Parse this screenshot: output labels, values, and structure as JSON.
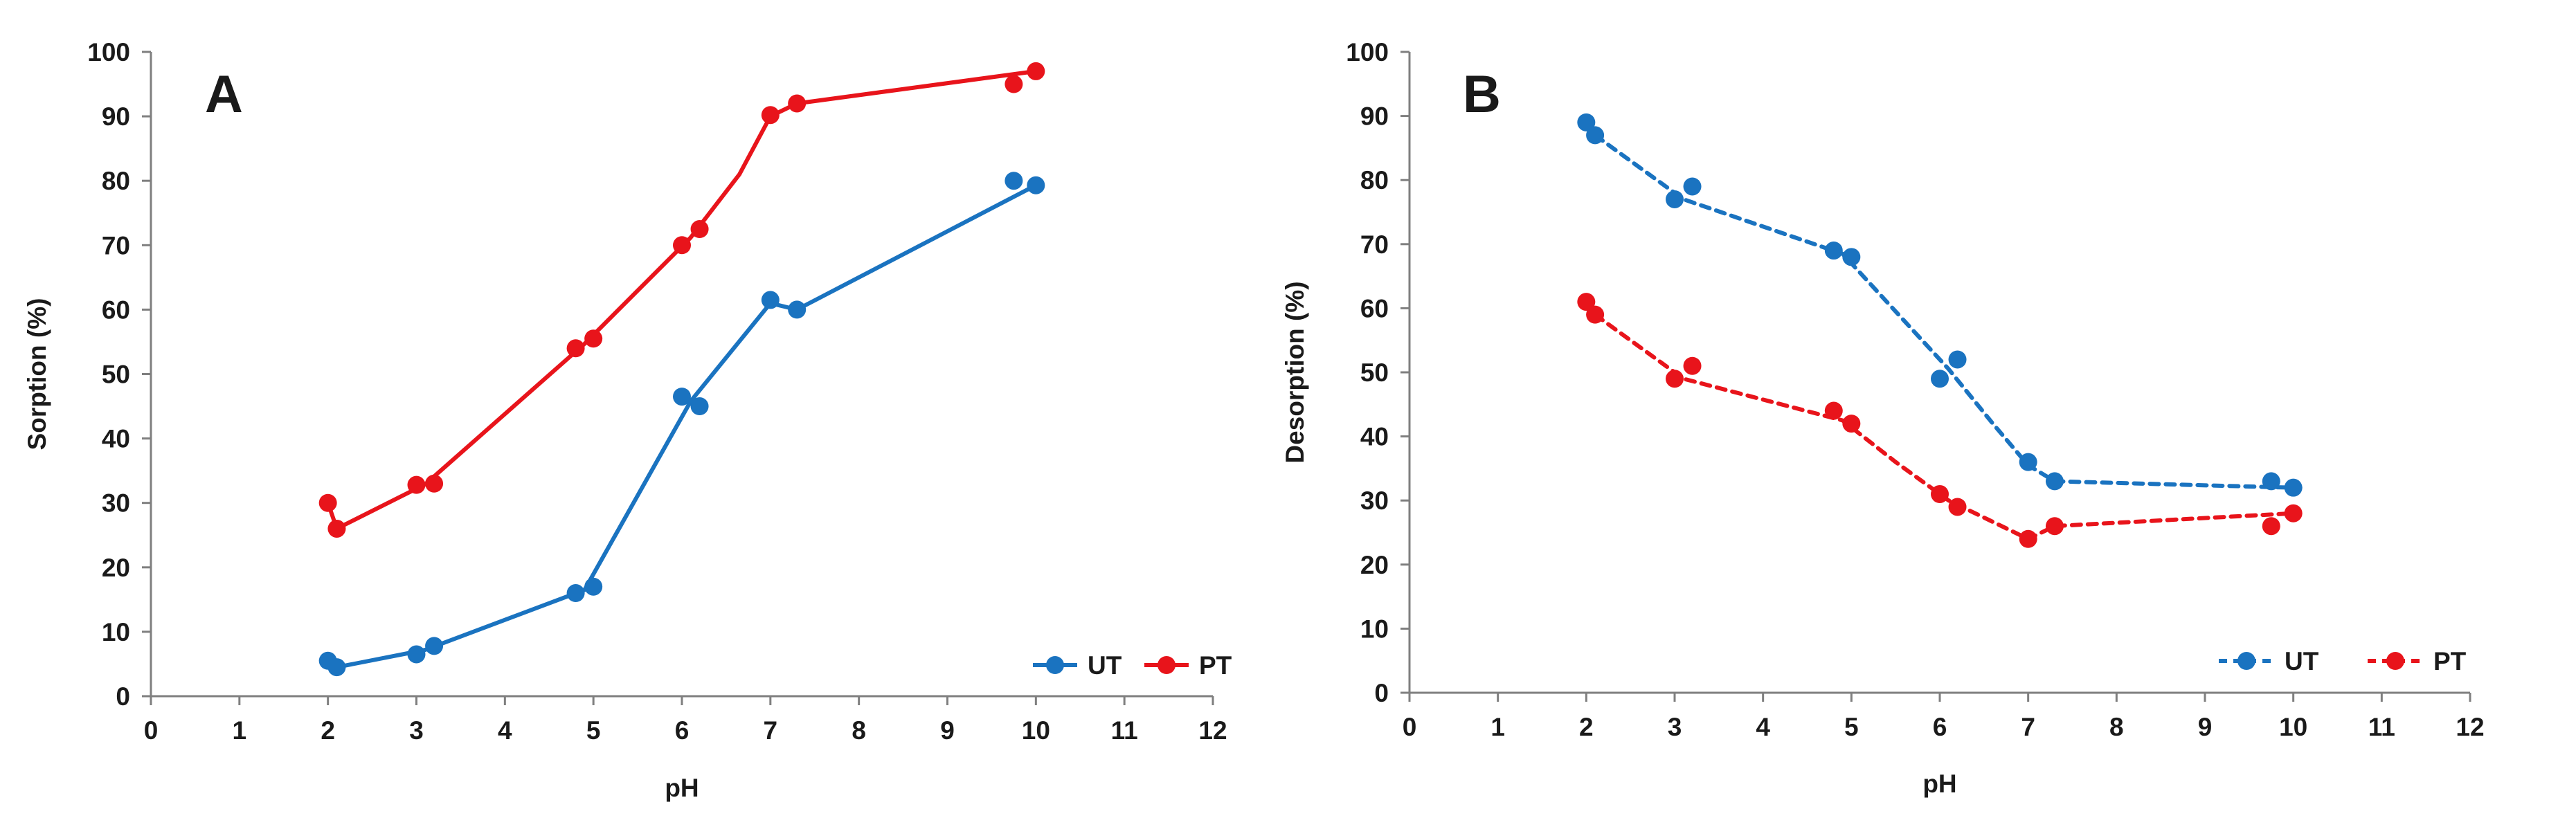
{
  "chart_data": [
    {
      "type": "line",
      "panel_label": "A",
      "xlabel": "pH",
      "ylabel": "Sorption (%)",
      "xlim": [
        0,
        12
      ],
      "ylim": [
        0,
        100
      ],
      "xticks": [
        "0",
        "1",
        "2",
        "3",
        "4",
        "5",
        "6",
        "7",
        "8",
        "9",
        "10",
        "11",
        "12"
      ],
      "yticks": [
        "0",
        "10",
        "20",
        "30",
        "40",
        "50",
        "60",
        "70",
        "80",
        "90",
        "100"
      ],
      "grid": false,
      "legend_position": "bottom-right",
      "series": [
        {
          "name": "UT",
          "color": "#1a73c0",
          "style": "solid",
          "points": [
            {
              "x": 2.0,
              "y": 5.5
            },
            {
              "x": 2.1,
              "y": 4.5
            },
            {
              "x": 3.0,
              "y": 6.5
            },
            {
              "x": 3.2,
              "y": 7.8
            },
            {
              "x": 4.8,
              "y": 16.0
            },
            {
              "x": 5.0,
              "y": 17.0
            },
            {
              "x": 6.0,
              "y": 46.5
            },
            {
              "x": 6.2,
              "y": 45.0
            },
            {
              "x": 7.0,
              "y": 61.5
            },
            {
              "x": 7.3,
              "y": 60.0
            },
            {
              "x": 9.75,
              "y": 80.0
            },
            {
              "x": 10.0,
              "y": 79.3
            }
          ],
          "line": [
            {
              "x": 2.0,
              "y": 5.5
            },
            {
              "x": 2.1,
              "y": 4.5
            },
            {
              "x": 3.1,
              "y": 7.2
            },
            {
              "x": 4.9,
              "y": 16.5
            },
            {
              "x": 6.1,
              "y": 45.8
            },
            {
              "x": 7.0,
              "y": 61.0
            },
            {
              "x": 7.3,
              "y": 60.0
            },
            {
              "x": 10.0,
              "y": 79.3
            }
          ]
        },
        {
          "name": "PT",
          "color": "#e8141b",
          "style": "solid",
          "points": [
            {
              "x": 2.0,
              "y": 30.0
            },
            {
              "x": 2.1,
              "y": 26.0
            },
            {
              "x": 3.0,
              "y": 32.8
            },
            {
              "x": 3.2,
              "y": 33.0
            },
            {
              "x": 4.8,
              "y": 54.0
            },
            {
              "x": 5.0,
              "y": 55.5
            },
            {
              "x": 6.0,
              "y": 70.0
            },
            {
              "x": 6.2,
              "y": 72.5
            },
            {
              "x": 7.0,
              "y": 90.2
            },
            {
              "x": 7.3,
              "y": 92.0
            },
            {
              "x": 9.75,
              "y": 95.0
            },
            {
              "x": 10.0,
              "y": 97.0
            }
          ],
          "line": [
            {
              "x": 2.0,
              "y": 30.0
            },
            {
              "x": 2.1,
              "y": 26.0
            },
            {
              "x": 3.1,
              "y": 32.9
            },
            {
              "x": 4.9,
              "y": 54.7
            },
            {
              "x": 6.1,
              "y": 71.2
            },
            {
              "x": 6.65,
              "y": 81.0
            },
            {
              "x": 7.0,
              "y": 90.0
            },
            {
              "x": 7.3,
              "y": 92.0
            },
            {
              "x": 10.0,
              "y": 97.0
            }
          ]
        }
      ]
    },
    {
      "type": "line",
      "panel_label": "B",
      "xlabel": "pH",
      "ylabel": "Desorption (%)",
      "xlim": [
        0,
        12
      ],
      "ylim": [
        0,
        100
      ],
      "xticks": [
        "0",
        "1",
        "2",
        "3",
        "4",
        "5",
        "6",
        "7",
        "8",
        "9",
        "10",
        "11",
        "12"
      ],
      "yticks": [
        "0",
        "10",
        "20",
        "30",
        "40",
        "50",
        "60",
        "70",
        "80",
        "90",
        "100"
      ],
      "grid": false,
      "legend_position": "bottom-right",
      "series": [
        {
          "name": "UT",
          "color": "#1a73c0",
          "style": "dashed",
          "points": [
            {
              "x": 2.0,
              "y": 89.0
            },
            {
              "x": 2.1,
              "y": 87.0
            },
            {
              "x": 3.0,
              "y": 77.0
            },
            {
              "x": 3.2,
              "y": 79.0
            },
            {
              "x": 4.8,
              "y": 69.0
            },
            {
              "x": 5.0,
              "y": 68.0
            },
            {
              "x": 6.0,
              "y": 49.0
            },
            {
              "x": 6.2,
              "y": 52.0
            },
            {
              "x": 7.0,
              "y": 36.0
            },
            {
              "x": 7.3,
              "y": 33.0
            },
            {
              "x": 9.75,
              "y": 33.0
            },
            {
              "x": 10.0,
              "y": 32.0
            }
          ],
          "line": [
            {
              "x": 2.0,
              "y": 89.0
            },
            {
              "x": 2.1,
              "y": 87.0
            },
            {
              "x": 3.1,
              "y": 77.0
            },
            {
              "x": 4.9,
              "y": 68.5
            },
            {
              "x": 5.4,
              "y": 61.0
            },
            {
              "x": 6.1,
              "y": 50.5
            },
            {
              "x": 6.6,
              "y": 42.0
            },
            {
              "x": 7.0,
              "y": 35.5
            },
            {
              "x": 7.3,
              "y": 33.0
            },
            {
              "x": 10.0,
              "y": 32.0
            }
          ]
        },
        {
          "name": "PT",
          "color": "#e8141b",
          "style": "dashed",
          "points": [
            {
              "x": 2.0,
              "y": 61.0
            },
            {
              "x": 2.1,
              "y": 59.0
            },
            {
              "x": 3.0,
              "y": 49.0
            },
            {
              "x": 3.2,
              "y": 51.0
            },
            {
              "x": 4.8,
              "y": 44.0
            },
            {
              "x": 5.0,
              "y": 42.0
            },
            {
              "x": 6.0,
              "y": 31.0
            },
            {
              "x": 6.2,
              "y": 29.0
            },
            {
              "x": 7.0,
              "y": 24.0
            },
            {
              "x": 7.3,
              "y": 26.0
            },
            {
              "x": 9.75,
              "y": 26.0
            },
            {
              "x": 10.0,
              "y": 28.0
            }
          ],
          "line": [
            {
              "x": 2.0,
              "y": 61.0
            },
            {
              "x": 2.1,
              "y": 59.0
            },
            {
              "x": 3.1,
              "y": 49.0
            },
            {
              "x": 4.9,
              "y": 42.5
            },
            {
              "x": 5.5,
              "y": 36.0
            },
            {
              "x": 6.1,
              "y": 30.0
            },
            {
              "x": 7.0,
              "y": 24.0
            },
            {
              "x": 7.3,
              "y": 26.0
            },
            {
              "x": 10.0,
              "y": 28.0
            }
          ]
        }
      ]
    }
  ]
}
